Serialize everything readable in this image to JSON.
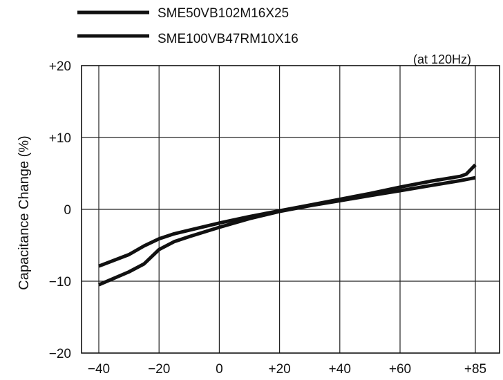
{
  "chart_data": {
    "type": "line",
    "title": "",
    "xlabel": "",
    "ylabel": "Capacitance Change (%)",
    "note": "(at 120Hz)",
    "xlim": [
      -40,
      85
    ],
    "ylim": [
      -20,
      20
    ],
    "grid": true,
    "legend_position": "top-left, above plot",
    "x_ticks": [
      -40,
      -20,
      0,
      20,
      40,
      60,
      85
    ],
    "x_tick_labels": [
      "−40",
      "−20",
      "0",
      "+20",
      "+40",
      "+60",
      "+85"
    ],
    "y_ticks": [
      20,
      10,
      0,
      -10,
      -20
    ],
    "y_tick_labels": [
      "+20",
      "+10",
      "0",
      "−10",
      "−20"
    ],
    "series": [
      {
        "name": "SME50VB102M16X25",
        "color": "#111111",
        "points": [
          [
            -40,
            -7.9
          ],
          [
            -30,
            -6.3
          ],
          [
            -25,
            -5.1
          ],
          [
            -20,
            -4.1
          ],
          [
            -15,
            -3.4
          ],
          [
            -10,
            -2.9
          ],
          [
            0,
            -1.9
          ],
          [
            10,
            -1.0
          ],
          [
            20,
            -0.2
          ],
          [
            30,
            0.6
          ],
          [
            40,
            1.4
          ],
          [
            50,
            2.2
          ],
          [
            60,
            3.1
          ],
          [
            70,
            3.9
          ],
          [
            80,
            4.6
          ],
          [
            82,
            4.9
          ],
          [
            85,
            6.2
          ]
        ]
      },
      {
        "name": "SME100VB47RM10X16",
        "color": "#111111",
        "points": [
          [
            -40,
            -10.5
          ],
          [
            -30,
            -8.7
          ],
          [
            -25,
            -7.6
          ],
          [
            -20,
            -5.6
          ],
          [
            -15,
            -4.5
          ],
          [
            -10,
            -3.8
          ],
          [
            0,
            -2.5
          ],
          [
            10,
            -1.3
          ],
          [
            20,
            -0.3
          ],
          [
            30,
            0.5
          ],
          [
            40,
            1.2
          ],
          [
            50,
            1.9
          ],
          [
            60,
            2.6
          ],
          [
            70,
            3.3
          ],
          [
            80,
            4.0
          ],
          [
            85,
            4.4
          ]
        ]
      }
    ]
  }
}
